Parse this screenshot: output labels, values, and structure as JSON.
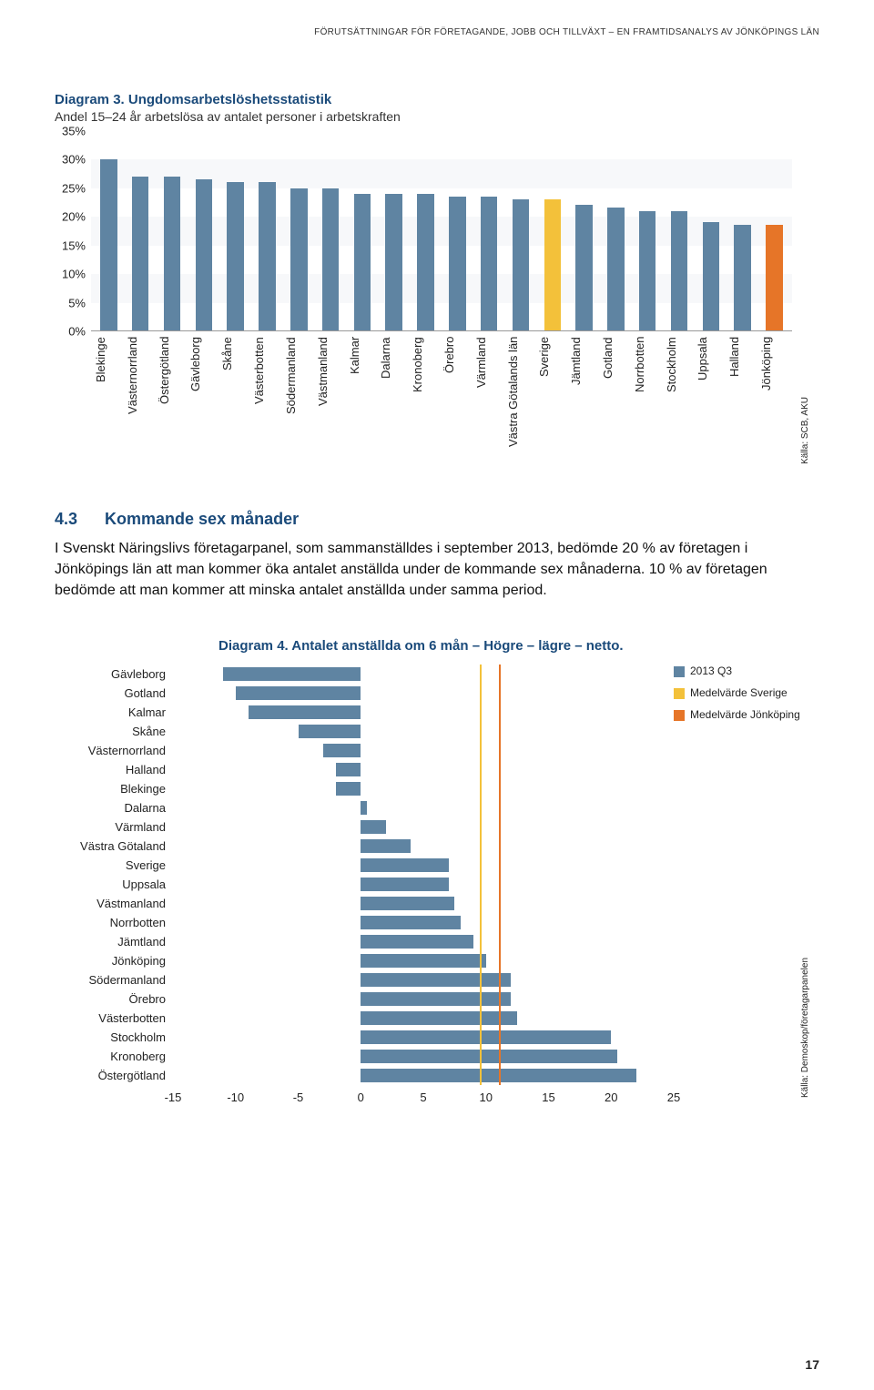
{
  "header_text": "FÖRUTSÄTTNINGAR FÖR FÖRETAGANDE, JOBB OCH TILLVÄXT – EN FRAMTIDSANALYS AV JÖNKÖPINGS LÄN",
  "page_number": "17",
  "chart1": {
    "type": "bar",
    "title": "Diagram 3. Ungdomsarbetslöshetsstatistik",
    "subtitle": "Andel 15–24 år arbetslösa av antalet personer i arbetskraften",
    "yticks": [
      "0%",
      "5%",
      "10%",
      "15%",
      "20%",
      "25%",
      "30%",
      "35%"
    ],
    "ymax": 35,
    "bar_color": "#5f84a2",
    "highlight_color": "#f3c13a",
    "accent_color": "#e67528",
    "background_stripe": "#f7f8fa",
    "source": "Källa: SCB, AKU",
    "categories": [
      {
        "label": "Blekinge",
        "value": 30,
        "color": "#5f84a2"
      },
      {
        "label": "Västernorrland",
        "value": 27,
        "color": "#5f84a2"
      },
      {
        "label": "Östergötland",
        "value": 27,
        "color": "#5f84a2"
      },
      {
        "label": "Gävleborg",
        "value": 26.5,
        "color": "#5f84a2"
      },
      {
        "label": "Skåne",
        "value": 26,
        "color": "#5f84a2"
      },
      {
        "label": "Västerbotten",
        "value": 26,
        "color": "#5f84a2"
      },
      {
        "label": "Södermanland",
        "value": 25,
        "color": "#5f84a2"
      },
      {
        "label": "Västmanland",
        "value": 25,
        "color": "#5f84a2"
      },
      {
        "label": "Kalmar",
        "value": 24,
        "color": "#5f84a2"
      },
      {
        "label": "Dalarna",
        "value": 24,
        "color": "#5f84a2"
      },
      {
        "label": "Kronoberg",
        "value": 24,
        "color": "#5f84a2"
      },
      {
        "label": "Örebro",
        "value": 23.5,
        "color": "#5f84a2"
      },
      {
        "label": "Värmland",
        "value": 23.5,
        "color": "#5f84a2"
      },
      {
        "label": "Västra Götalands län",
        "value": 23,
        "color": "#5f84a2"
      },
      {
        "label": "Sverige",
        "value": 23,
        "color": "#f3c13a"
      },
      {
        "label": "Jämtland",
        "value": 22,
        "color": "#5f84a2"
      },
      {
        "label": "Gotland",
        "value": 21.5,
        "color": "#5f84a2"
      },
      {
        "label": "Norrbotten",
        "value": 21,
        "color": "#5f84a2"
      },
      {
        "label": "Stockholm",
        "value": 21,
        "color": "#5f84a2"
      },
      {
        "label": "Uppsala",
        "value": 19,
        "color": "#5f84a2"
      },
      {
        "label": "Halland",
        "value": 18.5,
        "color": "#5f84a2"
      },
      {
        "label": "Jönköping",
        "value": 18.5,
        "color": "#e67528"
      }
    ]
  },
  "section": {
    "number": "4.3",
    "title": "Kommande sex månader",
    "text": "I Svenskt Näringslivs företagarpanel, som sammanställdes i september 2013, bedömde 20 % av företagen i Jönköpings län att man kommer öka antalet anställda under de kommande sex månaderna. 10 % av företagen bedömde att man kommer att minska antalet anställda under samma period."
  },
  "chart2": {
    "type": "bar-horizontal",
    "title": "Diagram 4. Antalet anställda om 6 mån – Högre – lägre – netto.",
    "xmin": -15,
    "xmax": 25,
    "xticks": [
      "-15",
      "-10",
      "-5",
      "0",
      "5",
      "10",
      "15",
      "20",
      "25"
    ],
    "bar_color": "#5f84a2",
    "ref_sverige_color": "#f3c13a",
    "ref_jonkoping_color": "#e67528",
    "ref_sverige_value": 9.5,
    "ref_jonkoping_value": 11,
    "source": "Källa: Demoskop/företagarpanelen",
    "legend": {
      "series": "2013 Q3",
      "ref1": "Medelvärde Sverige",
      "ref2": "Medelvärde Jönköping"
    },
    "rows": [
      {
        "label": "Gävleborg",
        "from": -11,
        "to": 0
      },
      {
        "label": "Gotland",
        "from": -10,
        "to": 0
      },
      {
        "label": "Kalmar",
        "from": -9,
        "to": 0
      },
      {
        "label": "Skåne",
        "from": -5,
        "to": 0
      },
      {
        "label": "Västernorrland",
        "from": -3,
        "to": 0
      },
      {
        "label": "Halland",
        "from": -2,
        "to": 0
      },
      {
        "label": "Blekinge",
        "from": -2,
        "to": 0
      },
      {
        "label": "Dalarna",
        "from": 0,
        "to": 0.5
      },
      {
        "label": "Värmland",
        "from": 0,
        "to": 2
      },
      {
        "label": "Västra Götaland",
        "from": 0,
        "to": 4
      },
      {
        "label": "Sverige",
        "from": 0,
        "to": 7
      },
      {
        "label": "Uppsala",
        "from": 0,
        "to": 7
      },
      {
        "label": "Västmanland",
        "from": 0,
        "to": 7.5
      },
      {
        "label": "Norrbotten",
        "from": 0,
        "to": 8
      },
      {
        "label": "Jämtland",
        "from": 0,
        "to": 9
      },
      {
        "label": "Jönköping",
        "from": 0,
        "to": 10
      },
      {
        "label": "Södermanland",
        "from": 0,
        "to": 12
      },
      {
        "label": "Örebro",
        "from": 0,
        "to": 12
      },
      {
        "label": "Västerbotten",
        "from": 0,
        "to": 12.5
      },
      {
        "label": "Stockholm",
        "from": 0,
        "to": 20
      },
      {
        "label": "Kronoberg",
        "from": 0,
        "to": 20.5
      },
      {
        "label": "Östergötland",
        "from": 0,
        "to": 22
      }
    ]
  }
}
